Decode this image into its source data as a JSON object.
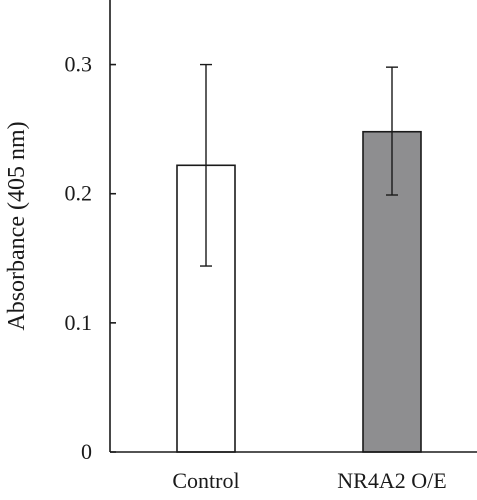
{
  "chart_data": {
    "type": "bar",
    "title": "",
    "xlabel": "",
    "ylabel": "Absorbance (405 nm)",
    "categories": [
      "Control",
      "NR4A2 O/E"
    ],
    "values": [
      0.222,
      0.248
    ],
    "error_low": [
      0.144,
      0.199
    ],
    "error_high": [
      0.3,
      0.298
    ],
    "bar_colors": [
      "#ffffff",
      "#8e8e90"
    ],
    "ylim": [
      0,
      0.35
    ],
    "yticks": [
      0,
      0.1,
      0.2,
      0.3
    ],
    "ytick_labels": [
      "0",
      "0.1",
      "0.2",
      "0.3"
    ],
    "grid": false,
    "legend": "none"
  }
}
